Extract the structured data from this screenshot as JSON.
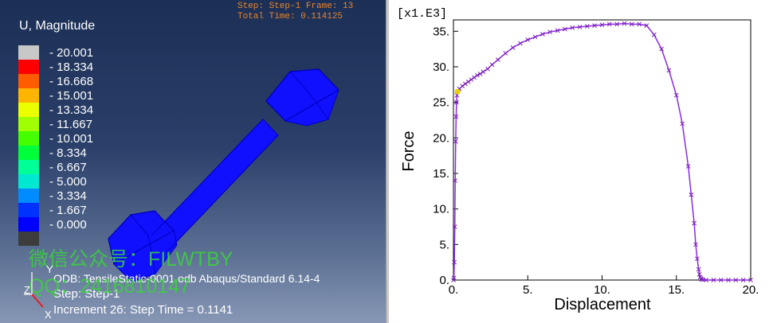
{
  "viewport": {
    "step_line": "Step: Step-1    Frame: 13",
    "time_line": "Total Time: 0.114125",
    "legend_title": "U, Magnitude",
    "legend_levels": [
      "20.001",
      "18.334",
      "16.668",
      "15.001",
      "13.334",
      "11.667",
      "10.001",
      "8.334",
      "6.667",
      "5.000",
      "3.334",
      "1.667",
      "0.000"
    ],
    "legend_colors": [
      "#c8c8c8",
      "#ff0000",
      "#ff5c00",
      "#ffb400",
      "#ebff00",
      "#a0ff00",
      "#45ff00",
      "#00ff3a",
      "#00ff96",
      "#00e7d2",
      "#008cff",
      "#0032ff",
      "#0000ff",
      "#3c3c3c"
    ],
    "model_color": "#1010ff",
    "odb_line": "ODB: TensileStatic-0001.odb    Abaqus/Standard 6.14-4",
    "step_footer": "Step: Step-1",
    "increment_line": "Increment     26: Step Time =    0.1141",
    "watermark_1": "微信公众号：FILWTBY",
    "watermark_2": "QQ：2416810147",
    "triad_y": "Y",
    "triad_z": "Z",
    "triad_x": "X"
  },
  "chart_data": {
    "type": "line",
    "xlabel": "Displacement",
    "ylabel": "Force",
    "y_scale_label": "[x1.E3]",
    "x_ticks": [
      "0.",
      "5.",
      "10.",
      "15.",
      "20."
    ],
    "y_ticks": [
      "0.",
      "5.",
      "10.",
      "15.",
      "20.",
      "25.",
      "30.",
      "35."
    ],
    "xlim": [
      0,
      20
    ],
    "ylim": [
      0,
      36
    ],
    "line_color": "#8a2be2",
    "marker_color": "#7a1fb0",
    "highlight_color": "#e8d000",
    "highlight_point": [
      0.28,
      26.5
    ],
    "series": [
      {
        "x": [
          0,
          0.03,
          0.06,
          0.09,
          0.12,
          0.15,
          0.18,
          0.21,
          0.24,
          0.28,
          0.4,
          0.6,
          0.8,
          1.0,
          1.2,
          1.4,
          1.6,
          1.8,
          2.0,
          2.3,
          2.6,
          3.0,
          3.5,
          4.0,
          4.5,
          5.0,
          5.5,
          6.0,
          6.5,
          7.0,
          7.5,
          8.0,
          8.5,
          9.0,
          9.5,
          10.0,
          10.5,
          11.0,
          11.5,
          12.0,
          12.5,
          13.0,
          13.5,
          14.0,
          14.5,
          15.0,
          15.4,
          15.8,
          16.0,
          16.2,
          16.3,
          16.4,
          16.5,
          16.55,
          16.6,
          16.65,
          16.7,
          16.8,
          17.0,
          17.5,
          18.0,
          18.5,
          19.0,
          19.5,
          20.0
        ],
        "y": [
          0,
          0.3,
          2.5,
          7.5,
          14.0,
          19.5,
          23.0,
          25.0,
          26.0,
          26.5,
          26.9,
          27.3,
          27.6,
          27.9,
          28.2,
          28.5,
          28.8,
          29.0,
          29.3,
          29.7,
          30.3,
          31.0,
          31.9,
          32.7,
          33.3,
          33.8,
          34.2,
          34.6,
          34.9,
          35.1,
          35.3,
          35.5,
          35.6,
          35.7,
          35.8,
          35.9,
          36.0,
          36.0,
          36.1,
          36.0,
          36.0,
          35.8,
          34.5,
          32.5,
          29.5,
          26.0,
          22.0,
          16.0,
          12.0,
          8.0,
          5.0,
          3.0,
          1.5,
          0.8,
          0.4,
          0.2,
          0.1,
          0.05,
          0.0,
          0.0,
          0.0,
          0.0,
          0.0,
          0.0,
          0.0
        ]
      }
    ]
  }
}
